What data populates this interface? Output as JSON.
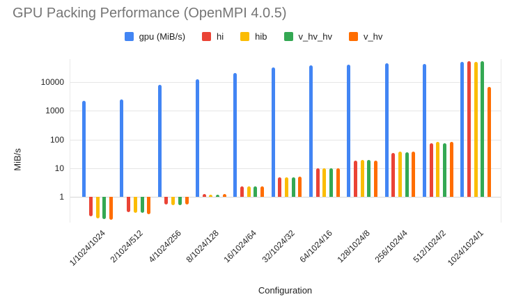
{
  "title": "GPU Packing Performance (OpenMPI 4.0.5)",
  "colors": {
    "background": "#ffffff",
    "title_text": "#757575",
    "axis_text": "#212121",
    "gridline": "#e6e6e6",
    "series_blue": "#4285f4",
    "series_red": "#ea4335",
    "series_yellow": "#fbbc04",
    "series_green": "#34a853",
    "series_orange": "#ff6d01"
  },
  "chart_data": {
    "type": "bar",
    "title": "GPU Packing Performance (OpenMPI 4.0.5)",
    "xlabel": "Configuration",
    "ylabel": "MiB/s",
    "y_scale": "log",
    "grid": true,
    "legend_position": "top",
    "baseline_value": 1,
    "y_axis": {
      "min": 0.13,
      "max": 63000,
      "tick_labels": [
        "1",
        "10",
        "100",
        "1000",
        "10000"
      ],
      "tick_values": [
        1,
        10,
        100,
        1000,
        10000
      ]
    },
    "categories": [
      "1/1024/1024",
      "2/1024/512",
      "4/1024/256",
      "8/1024/128",
      "16/1024/64",
      "32/1024/32",
      "64/1024/16",
      "128/1024/8",
      "256/1024/4",
      "512/1024/2",
      "1024/1024/1"
    ],
    "series": [
      {
        "name": "gpu (MiB/s)",
        "color": "#4285f4",
        "values": [
          2200,
          2500,
          8000,
          12500,
          21000,
          32000,
          39000,
          41000,
          46000,
          43000,
          50000
        ]
      },
      {
        "name": "hi",
        "color": "#ea4335",
        "values": [
          0.22,
          0.3,
          0.55,
          1.25,
          2.3,
          4.9,
          9.8,
          19,
          34,
          76,
          53000
        ]
      },
      {
        "name": "hib",
        "color": "#fbbc04",
        "values": [
          0.18,
          0.28,
          0.52,
          1.2,
          2.3,
          4.9,
          10,
          20,
          38,
          85,
          50000
        ]
      },
      {
        "name": "v_hv_hv",
        "color": "#34a853",
        "values": [
          0.17,
          0.28,
          0.52,
          1.2,
          2.3,
          4.9,
          10,
          19.5,
          37,
          74,
          53000
        ]
      },
      {
        "name": "v_hv",
        "color": "#ff6d01",
        "values": [
          0.16,
          0.26,
          0.55,
          1.25,
          2.4,
          5.1,
          10.2,
          19,
          38,
          85,
          6800
        ]
      }
    ]
  }
}
